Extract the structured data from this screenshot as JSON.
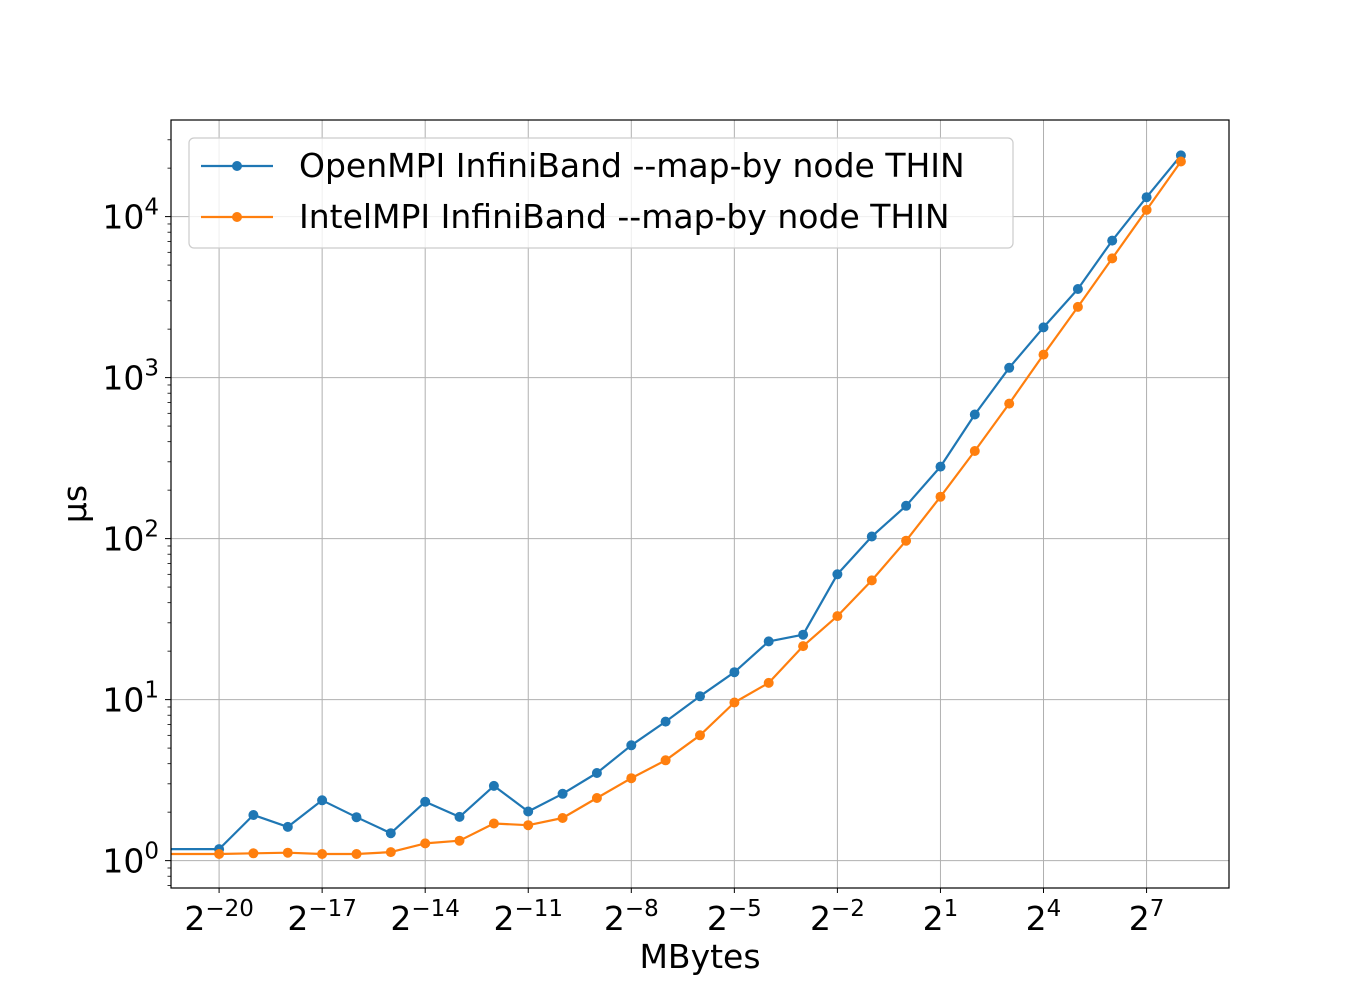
{
  "chart_data": {
    "type": "line",
    "xlabel": "MBytes",
    "ylabel": "μs",
    "x_scale": "log2",
    "y_scale": "log10",
    "grid": true,
    "legend_position": "top-left",
    "xlim_exponent": [
      -21.4,
      9.4
    ],
    "ylim_exponent": [
      -0.17,
      4.6
    ],
    "x_ticks": [
      {
        "base": "2",
        "exp": "−20",
        "value": -20
      },
      {
        "base": "2",
        "exp": "−17",
        "value": -17
      },
      {
        "base": "2",
        "exp": "−14",
        "value": -14
      },
      {
        "base": "2",
        "exp": "−11",
        "value": -11
      },
      {
        "base": "2",
        "exp": "−8",
        "value": -8
      },
      {
        "base": "2",
        "exp": "−5",
        "value": -5
      },
      {
        "base": "2",
        "exp": "−2",
        "value": -2
      },
      {
        "base": "2",
        "exp": "1",
        "value": 1
      },
      {
        "base": "2",
        "exp": "4",
        "value": 4
      },
      {
        "base": "2",
        "exp": "7",
        "value": 7
      }
    ],
    "y_ticks": [
      {
        "base": "10",
        "exp": "0",
        "value": 0
      },
      {
        "base": "10",
        "exp": "1",
        "value": 1
      },
      {
        "base": "10",
        "exp": "2",
        "value": 2
      },
      {
        "base": "10",
        "exp": "3",
        "value": 3
      },
      {
        "base": "10",
        "exp": "4",
        "value": 4
      }
    ],
    "x_exponents": [
      -22,
      -20,
      -19,
      -18,
      -17,
      -16,
      -15,
      -14,
      -13,
      -12,
      -11,
      -10,
      -9,
      -8,
      -7,
      -6,
      -5,
      -4,
      -3,
      -2,
      -1,
      0,
      1,
      2,
      3,
      4,
      5,
      6,
      7,
      8
    ],
    "series": [
      {
        "name": "OpenMPI InfiniBand --map-by node THIN",
        "color": "#1f77b4",
        "values": [
          1.18,
          1.18,
          1.92,
          1.62,
          2.37,
          1.86,
          1.48,
          2.32,
          1.87,
          2.91,
          2.02,
          2.6,
          3.5,
          5.2,
          7.3,
          10.5,
          14.8,
          23,
          25.3,
          60,
          103,
          160,
          280,
          590,
          1150,
          2050,
          3550,
          7100,
          13200,
          24000
        ]
      },
      {
        "name": "IntelMPI InfiniBand --map-by node THIN",
        "color": "#ff7f0e",
        "values": [
          1.1,
          1.1,
          1.11,
          1.12,
          1.1,
          1.1,
          1.13,
          1.28,
          1.33,
          1.7,
          1.66,
          1.84,
          2.45,
          3.25,
          4.2,
          6.0,
          9.6,
          12.7,
          21.5,
          33,
          55,
          97,
          182,
          350,
          690,
          1390,
          2750,
          5500,
          11000,
          22000
        ]
      }
    ]
  }
}
